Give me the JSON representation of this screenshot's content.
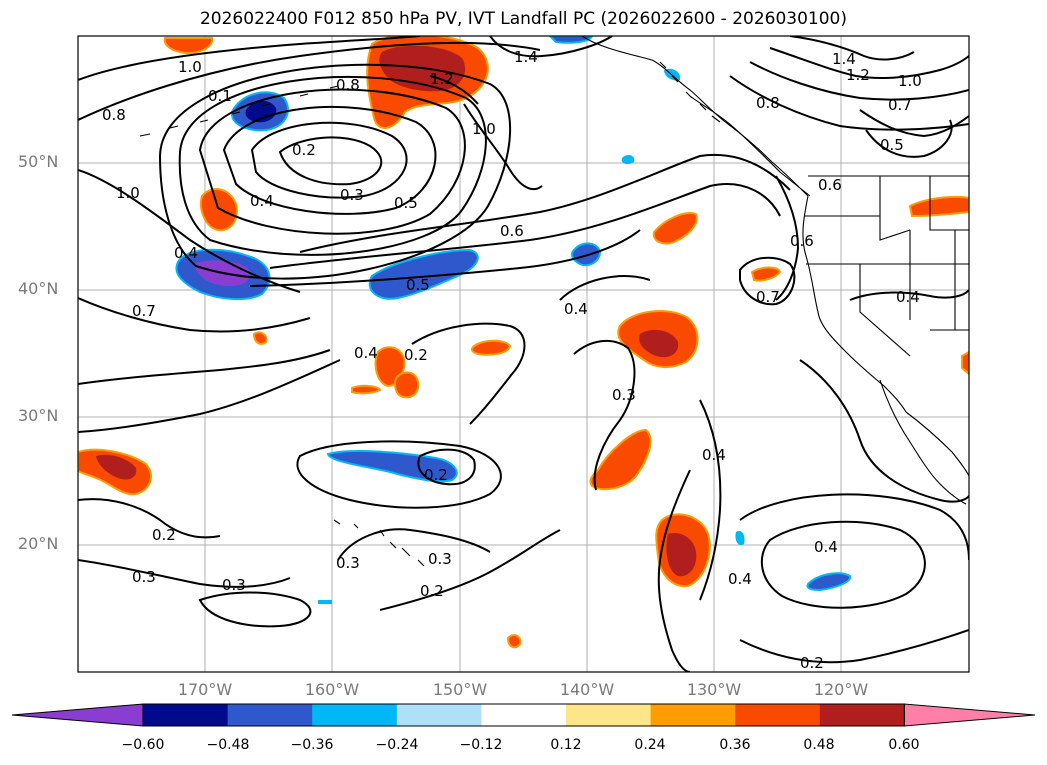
{
  "title": "2026022400 F012 850 hPa PV, IVT Landfall PC (2026022600 - 2026030100)",
  "lat_labels": [
    "50°N",
    "40°N",
    "30°N",
    "20°N"
  ],
  "lon_labels": [
    "170°W",
    "160°W",
    "150°W",
    "140°W",
    "130°W",
    "120°W"
  ],
  "colorbar": {
    "ticks": [
      "−0.60",
      "−0.48",
      "−0.36",
      "−0.24",
      "−0.12",
      "0.12",
      "0.24",
      "0.36",
      "0.48",
      "0.60"
    ],
    "colors": [
      "#8a3dd1",
      "#000a8c",
      "#2f58cc",
      "#00b8f5",
      "#aee0f8",
      "#ffffff",
      "#fde58a",
      "#ff9d00",
      "#fa4a00",
      "#b01e1e",
      "#ff7fa8"
    ]
  },
  "contour_labels": [
    "1.0",
    "0.8",
    "0.1",
    "0.2",
    "0.3",
    "0.4",
    "0.5",
    "0.6",
    "1.0",
    "1.2",
    "1.4",
    "1.4",
    "1.2",
    "1.0",
    "0.8",
    "0.7",
    "0.5",
    "0.6",
    "0.6",
    "0.7",
    "0.4",
    "0.4",
    "0.5",
    "0.4",
    "0.2",
    "0.4",
    "0.7",
    "0.3",
    "0.4",
    "0.2",
    "0.2",
    "0.3",
    "0.3",
    "0.2",
    "0.3",
    "0.4",
    "0.4",
    "0.2",
    "0.8",
    "1.0",
    "0.3"
  ]
}
